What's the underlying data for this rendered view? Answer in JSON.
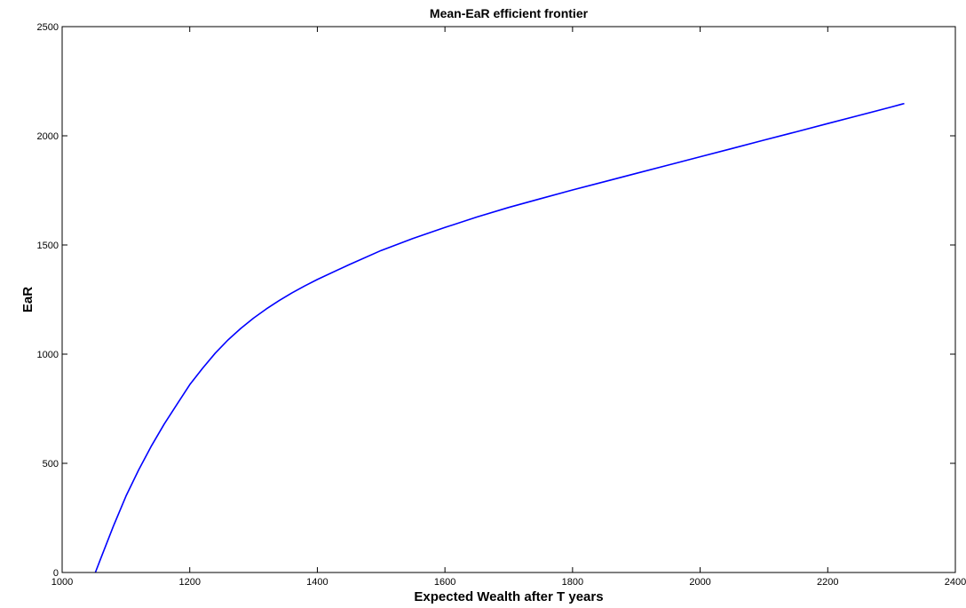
{
  "chart_data": {
    "type": "line",
    "title": "Mean-EaR efficient frontier",
    "xlabel": "Expected Wealth after T years",
    "ylabel": "EaR",
    "xlim": [
      1000,
      2400
    ],
    "ylim": [
      0,
      2500
    ],
    "xticks": [
      1000,
      1200,
      1400,
      1600,
      1800,
      2000,
      2200,
      2400
    ],
    "yticks": [
      0,
      500,
      1000,
      1500,
      2000,
      2500
    ],
    "grid": false,
    "legend": "none",
    "series": [
      {
        "color": "#0000ff",
        "x": [
          1052,
          1060,
          1080,
          1100,
          1120,
          1140,
          1160,
          1180,
          1200,
          1220,
          1240,
          1260,
          1280,
          1300,
          1320,
          1340,
          1360,
          1380,
          1400,
          1450,
          1500,
          1550,
          1600,
          1650,
          1700,
          1750,
          1800,
          1850,
          1900,
          1950,
          2000,
          2050,
          2100,
          2150,
          2200,
          2250,
          2300,
          2320
        ],
        "y": [
          0,
          60,
          210,
          350,
          470,
          580,
          680,
          770,
          860,
          935,
          1005,
          1065,
          1118,
          1165,
          1207,
          1245,
          1280,
          1312,
          1342,
          1410,
          1475,
          1530,
          1580,
          1628,
          1672,
          1712,
          1752,
          1790,
          1828,
          1866,
          1904,
          1942,
          1980,
          2018,
          2056,
          2094,
          2132,
          2148
        ]
      }
    ]
  }
}
